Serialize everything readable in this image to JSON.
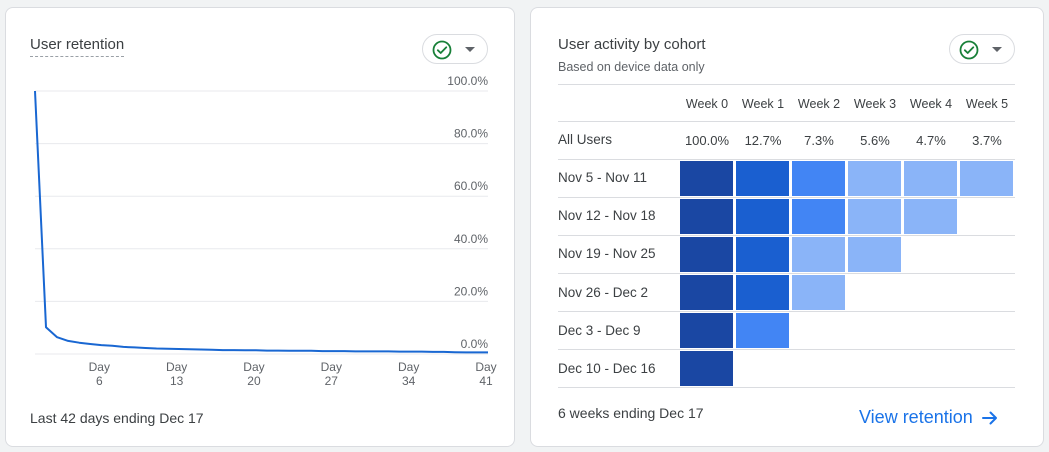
{
  "retention_card": {
    "title": "User retention",
    "footer": "Last 42 days ending Dec 17",
    "chart_data": {
      "type": "line",
      "title": "User retention",
      "xlabel": "",
      "ylabel": "",
      "x_tick_labels": [
        "Day 6",
        "Day 13",
        "Day 20",
        "Day 27",
        "Day 34",
        "Day 41"
      ],
      "y_tick_labels": [
        "100.0%",
        "80.0%",
        "60.0%",
        "40.0%",
        "20.0%",
        "0.0%"
      ],
      "ylim": [
        0,
        100
      ],
      "xlim": [
        0,
        41
      ],
      "series": [
        {
          "name": "User retention",
          "color": "#1967d2",
          "x": [
            0,
            1,
            2,
            3,
            4,
            5,
            6,
            7,
            8,
            9,
            10,
            11,
            12,
            13,
            14,
            15,
            16,
            17,
            18,
            19,
            20,
            21,
            22,
            23,
            24,
            25,
            26,
            27,
            28,
            29,
            30,
            31,
            32,
            33,
            34,
            35,
            36,
            37,
            38,
            39,
            40,
            41
          ],
          "values": [
            100,
            10.2,
            6.4,
            5.0,
            4.3,
            3.8,
            3.4,
            3.1,
            2.7,
            2.5,
            2.3,
            2.1,
            2.0,
            1.9,
            1.8,
            1.7,
            1.6,
            1.5,
            1.5,
            1.4,
            1.4,
            1.3,
            1.3,
            1.2,
            1.2,
            1.2,
            1.1,
            1.1,
            1.1,
            1.0,
            1.0,
            1.0,
            1.0,
            0.9,
            0.9,
            0.9,
            0.8,
            0.8,
            0.7,
            0.6,
            0.6,
            0.6
          ]
        }
      ]
    }
  },
  "cohort_card": {
    "title": "User activity by cohort",
    "subtitle": "Based on device data only",
    "columns": [
      "Week 0",
      "Week 1",
      "Week 2",
      "Week 3",
      "Week 4",
      "Week 5"
    ],
    "all_users": {
      "label": "All Users",
      "values": [
        "100.0%",
        "12.7%",
        "7.3%",
        "5.6%",
        "4.7%",
        "3.7%"
      ]
    },
    "rows": [
      {
        "label": "Nov 5 - Nov 11",
        "levels": [
          4,
          3,
          2,
          1,
          1,
          1
        ]
      },
      {
        "label": "Nov 12 - Nov 18",
        "levels": [
          4,
          3,
          2,
          1,
          1
        ]
      },
      {
        "label": "Nov 19 - Nov 25",
        "levels": [
          4,
          3,
          1,
          1
        ]
      },
      {
        "label": "Nov 26 - Dec 2",
        "levels": [
          4,
          3,
          1
        ]
      },
      {
        "label": "Dec 3 - Dec 9",
        "levels": [
          4,
          2
        ]
      },
      {
        "label": "Dec 10 - Dec 16",
        "levels": [
          4
        ]
      }
    ],
    "level_colors": {
      "1": "#8ab4f8",
      "2": "#4285f4",
      "3": "#1a5fd0",
      "4": "#1a47a3"
    },
    "footer": "6 weeks ending Dec 17",
    "link_label": "View retention"
  },
  "colors": {
    "accent": "#1a73e8",
    "check": "#188038"
  }
}
